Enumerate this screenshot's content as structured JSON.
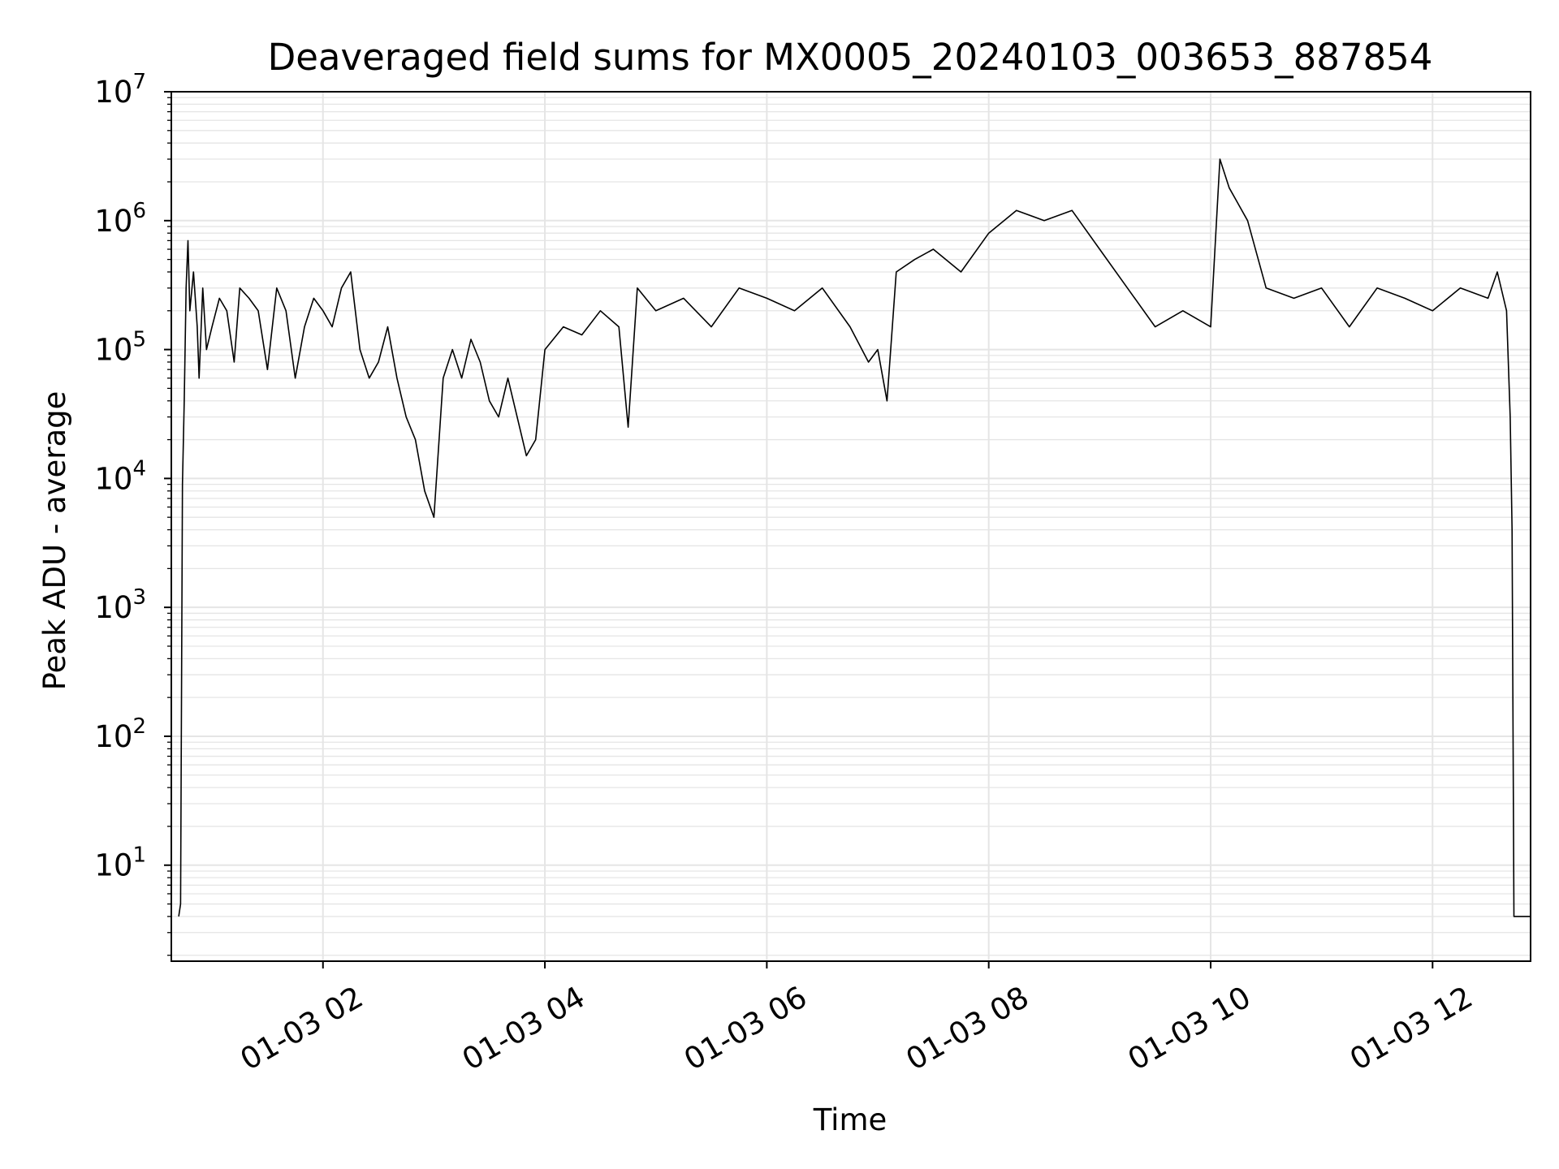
{
  "chart_data": {
    "type": "line",
    "title": "Deaveraged field sums for MX0005_20240103_003653_887854",
    "xlabel": "Time",
    "ylabel": "Peak ADU - average",
    "x_scale": "time",
    "y_scale": "log",
    "xlim": [
      "01-03 00:38",
      "01-03 12:53"
    ],
    "ylim": [
      1.8,
      10000000
    ],
    "x_ticks": [
      "01-03 02",
      "01-03 04",
      "01-03 06",
      "01-03 08",
      "01-03 10",
      "01-03 12"
    ],
    "y_ticks": [
      {
        "base": "10",
        "exp": "1"
      },
      {
        "base": "10",
        "exp": "2"
      },
      {
        "base": "10",
        "exp": "3"
      },
      {
        "base": "10",
        "exp": "4"
      },
      {
        "base": "10",
        "exp": "5"
      },
      {
        "base": "10",
        "exp": "6"
      },
      {
        "base": "10",
        "exp": "7"
      }
    ],
    "grid": true,
    "line_color": "#000000",
    "grid_color": "#e5e5e5",
    "series": [
      {
        "x": [
          "01-03 00:42",
          "01-03 00:43",
          "01-03 00:44",
          "01-03 00:45",
          "01-03 00:46",
          "01-03 00:47",
          "01-03 00:48",
          "01-03 00:50",
          "01-03 00:52",
          "01-03 00:53",
          "01-03 00:55",
          "01-03 00:57",
          "01-03 01:00",
          "01-03 01:04",
          "01-03 01:08",
          "01-03 01:12",
          "01-03 01:15",
          "01-03 01:20",
          "01-03 01:25",
          "01-03 01:30",
          "01-03 01:35",
          "01-03 01:40",
          "01-03 01:45",
          "01-03 01:50",
          "01-03 01:55",
          "01-03 02:00",
          "01-03 02:05",
          "01-03 02:10",
          "01-03 02:15",
          "01-03 02:20",
          "01-03 02:25",
          "01-03 02:30",
          "01-03 02:35",
          "01-03 02:40",
          "01-03 02:45",
          "01-03 02:50",
          "01-03 02:55",
          "01-03 03:00",
          "01-03 03:05",
          "01-03 03:10",
          "01-03 03:15",
          "01-03 03:20",
          "01-03 03:25",
          "01-03 03:30",
          "01-03 03:35",
          "01-03 03:40",
          "01-03 03:45",
          "01-03 03:50",
          "01-03 03:55",
          "01-03 04:00",
          "01-03 04:10",
          "01-03 04:20",
          "01-03 04:30",
          "01-03 04:40",
          "01-03 04:45",
          "01-03 04:50",
          "01-03 05:00",
          "01-03 05:15",
          "01-03 05:30",
          "01-03 05:45",
          "01-03 06:00",
          "01-03 06:15",
          "01-03 06:30",
          "01-03 06:45",
          "01-03 06:55",
          "01-03 07:00",
          "01-03 07:05",
          "01-03 07:10",
          "01-03 07:20",
          "01-03 07:30",
          "01-03 07:45",
          "01-03 08:00",
          "01-03 08:15",
          "01-03 08:30",
          "01-03 08:45",
          "01-03 09:00",
          "01-03 09:15",
          "01-03 09:30",
          "01-03 09:45",
          "01-03 10:00",
          "01-03 10:05",
          "01-03 10:10",
          "01-03 10:20",
          "01-03 10:30",
          "01-03 10:45",
          "01-03 11:00",
          "01-03 11:15",
          "01-03 11:30",
          "01-03 11:45",
          "01-03 12:00",
          "01-03 12:15",
          "01-03 12:30",
          "01-03 12:35",
          "01-03 12:40",
          "01-03 12:42",
          "01-03 12:43",
          "01-03 12:44",
          "01-03 12:45",
          "01-03 12:53"
        ],
        "y": [
          4,
          5,
          9000,
          40000,
          300000,
          700000,
          200000,
          400000,
          150000,
          60000,
          300000,
          100000,
          150000,
          250000,
          200000,
          80000,
          300000,
          250000,
          200000,
          70000,
          300000,
          200000,
          60000,
          150000,
          250000,
          200000,
          150000,
          300000,
          400000,
          100000,
          60000,
          80000,
          150000,
          60000,
          30000,
          20000,
          8000,
          5000,
          60000,
          100000,
          60000,
          120000,
          80000,
          40000,
          30000,
          60000,
          30000,
          15000,
          20000,
          100000,
          150000,
          130000,
          200000,
          150000,
          25000,
          300000,
          200000,
          250000,
          150000,
          300000,
          250000,
          200000,
          300000,
          150000,
          80000,
          100000,
          40000,
          400000,
          500000,
          600000,
          400000,
          800000,
          1200000,
          1000000,
          1200000,
          600000,
          300000,
          150000,
          200000,
          150000,
          3000000,
          1800000,
          1000000,
          300000,
          250000,
          300000,
          150000,
          300000,
          250000,
          200000,
          300000,
          250000,
          400000,
          200000,
          30000,
          4000,
          4,
          4,
          4
        ]
      }
    ]
  }
}
